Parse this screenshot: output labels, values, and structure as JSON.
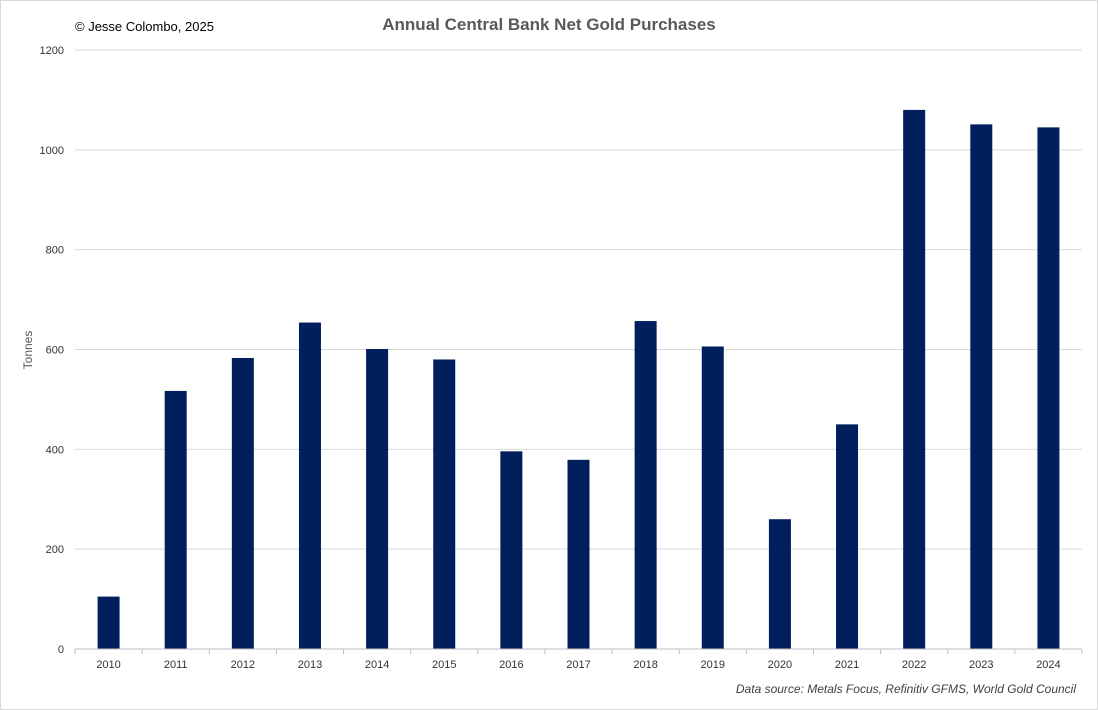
{
  "copyright": "© Jesse Colombo, 2025",
  "source_note": "Data source: Metals Focus, Refinitiv GFMS, World Gold Council",
  "chart_data": {
    "type": "bar",
    "title": "Annual Central Bank Net Gold Purchases",
    "xlabel": "",
    "ylabel": "Tonnes",
    "categories": [
      "2010",
      "2011",
      "2012",
      "2013",
      "2014",
      "2015",
      "2016",
      "2017",
      "2018",
      "2019",
      "2020",
      "2021",
      "2022",
      "2023",
      "2024"
    ],
    "values": [
      105,
      517,
      583,
      654,
      601,
      580,
      396,
      379,
      657,
      606,
      260,
      450,
      1080,
      1051,
      1045
    ],
    "ylim": [
      0,
      1200
    ],
    "yticks": [
      0,
      200,
      400,
      600,
      800,
      1000,
      1200
    ],
    "grid": true,
    "legend": "none",
    "colors": {
      "bar": "#001F5C",
      "grid": "#d9d9d9",
      "axis": "#bfbfbf"
    }
  }
}
